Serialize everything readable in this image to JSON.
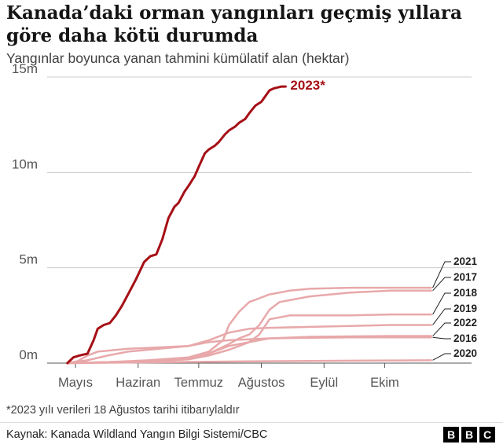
{
  "header": {
    "title": "Kanada’daki orman yangınları geçmiş yıllara göre daha kötü durumda",
    "subtitle": "Yangınlar boyunca yanan tahmini kümülatif alan (hektar)"
  },
  "footer": {
    "note": "*2023 yılı verileri 18 Ağustos tarihi itibarıylaldır",
    "source": "Kaynak: Kanada Wildland Yangın Bilgi Sistemi/CBC",
    "logo_letters": [
      "B",
      "B",
      "C"
    ]
  },
  "chart_data": {
    "type": "line",
    "title": "Kanada’daki orman yangınları geçmiş yıllara göre daha kötü durumda",
    "subtitle": "Yangınlar boyunca yanan tahmini kümülatif alan (hektar)",
    "xlabel": "",
    "ylabel": "",
    "x_unit": "day of year",
    "xlim": [
      110,
      320
    ],
    "ylim": [
      0,
      15000000
    ],
    "x_ticks": [
      {
        "value": 124,
        "label": "Mayıs"
      },
      {
        "value": 155,
        "label": "Haziran"
      },
      {
        "value": 185,
        "label": "Temmuz"
      },
      {
        "value": 216,
        "label": "Ağustos"
      },
      {
        "value": 247,
        "label": "Eylül"
      },
      {
        "value": 277,
        "label": "Ekim"
      }
    ],
    "y_ticks": [
      {
        "value": 0,
        "label": "0m"
      },
      {
        "value": 5000000,
        "label": "5m"
      },
      {
        "value": 10000000,
        "label": "10m"
      },
      {
        "value": 15000000,
        "label": "15m"
      }
    ],
    "grid": true,
    "highlight_color": "#a50f15",
    "series_color": "#e8a8aa",
    "series": [
      {
        "name": "2023*",
        "highlight": true,
        "x": [
          120,
          123,
          126,
          130,
          133,
          135,
          138,
          141,
          144,
          147,
          150,
          154,
          158,
          161,
          164,
          167,
          170,
          173,
          175,
          178,
          180,
          183,
          185,
          188,
          190,
          193,
          195,
          198,
          200,
          203,
          205,
          208,
          210,
          213,
          216,
          218,
          220,
          222,
          224,
          226,
          228
        ],
        "y": [
          0,
          300000,
          400000,
          500000,
          1200000,
          1800000,
          2000000,
          2100000,
          2500000,
          3000000,
          3600000,
          4400000,
          5300000,
          5600000,
          5700000,
          6500000,
          7600000,
          8200000,
          8400000,
          9000000,
          9300000,
          9800000,
          10300000,
          11000000,
          11200000,
          11400000,
          11600000,
          12000000,
          12200000,
          12400000,
          12600000,
          12800000,
          13100000,
          13500000,
          13700000,
          14000000,
          14300000,
          14400000,
          14450000,
          14500000,
          14500000
        ]
      },
      {
        "name": "2021",
        "x": [
          120,
          140,
          160,
          180,
          190,
          197,
          200,
          205,
          210,
          215,
          220,
          230,
          240,
          260,
          280,
          300
        ],
        "y": [
          0,
          50000,
          150000,
          300000,
          600000,
          1200000,
          2000000,
          2700000,
          3200000,
          3400000,
          3600000,
          3800000,
          3900000,
          3950000,
          3950000,
          3950000
        ]
      },
      {
        "name": "2017",
        "x": [
          120,
          140,
          160,
          180,
          185,
          190,
          200,
          205,
          210,
          215,
          220,
          225,
          240,
          260,
          280,
          300
        ],
        "y": [
          0,
          50000,
          100000,
          200000,
          300000,
          500000,
          1000000,
          1300000,
          1500000,
          2000000,
          2800000,
          3200000,
          3500000,
          3700000,
          3800000,
          3800000
        ]
      },
      {
        "name": "2018",
        "x": [
          120,
          140,
          160,
          180,
          190,
          200,
          205,
          210,
          215,
          220,
          225,
          230,
          240,
          260,
          280,
          300
        ],
        "y": [
          0,
          50000,
          100000,
          200000,
          400000,
          700000,
          900000,
          1100000,
          1500000,
          2300000,
          2400000,
          2500000,
          2500000,
          2500000,
          2550000,
          2550000
        ]
      },
      {
        "name": "2019",
        "x": [
          120,
          130,
          140,
          150,
          160,
          170,
          180,
          190,
          200,
          210,
          220,
          240,
          260,
          280,
          300
        ],
        "y": [
          0,
          150000,
          400000,
          600000,
          700000,
          800000,
          900000,
          1200000,
          1600000,
          1800000,
          1850000,
          1900000,
          1950000,
          2000000,
          2000000
        ]
      },
      {
        "name": "2022",
        "x": [
          120,
          140,
          160,
          175,
          185,
          190,
          195,
          200,
          205,
          210,
          215,
          220,
          240,
          260,
          280,
          300
        ],
        "y": [
          0,
          50000,
          100000,
          200000,
          350000,
          500000,
          700000,
          900000,
          1000000,
          1100000,
          1200000,
          1300000,
          1380000,
          1400000,
          1420000,
          1420000
        ]
      },
      {
        "name": "2016",
        "x": [
          120,
          125,
          130,
          135,
          150,
          160,
          170,
          180,
          190,
          200,
          210,
          220,
          240,
          260,
          280,
          300
        ],
        "y": [
          0,
          100000,
          400000,
          600000,
          750000,
          800000,
          850000,
          900000,
          1100000,
          1200000,
          1250000,
          1300000,
          1330000,
          1350000,
          1350000,
          1350000
        ]
      },
      {
        "name": "2020",
        "x": [
          120,
          150,
          180,
          210,
          240,
          270,
          300
        ],
        "y": [
          0,
          30000,
          60000,
          90000,
          110000,
          130000,
          150000
        ]
      }
    ],
    "annotations": [
      {
        "text": "2023*",
        "for": "2023*"
      },
      {
        "text": "2021",
        "for": "2021"
      },
      {
        "text": "2017",
        "for": "2017"
      },
      {
        "text": "2018",
        "for": "2018"
      },
      {
        "text": "2019",
        "for": "2019"
      },
      {
        "text": "2022",
        "for": "2022"
      },
      {
        "text": "2016",
        "for": "2016"
      },
      {
        "text": "2020",
        "for": "2020"
      }
    ]
  }
}
